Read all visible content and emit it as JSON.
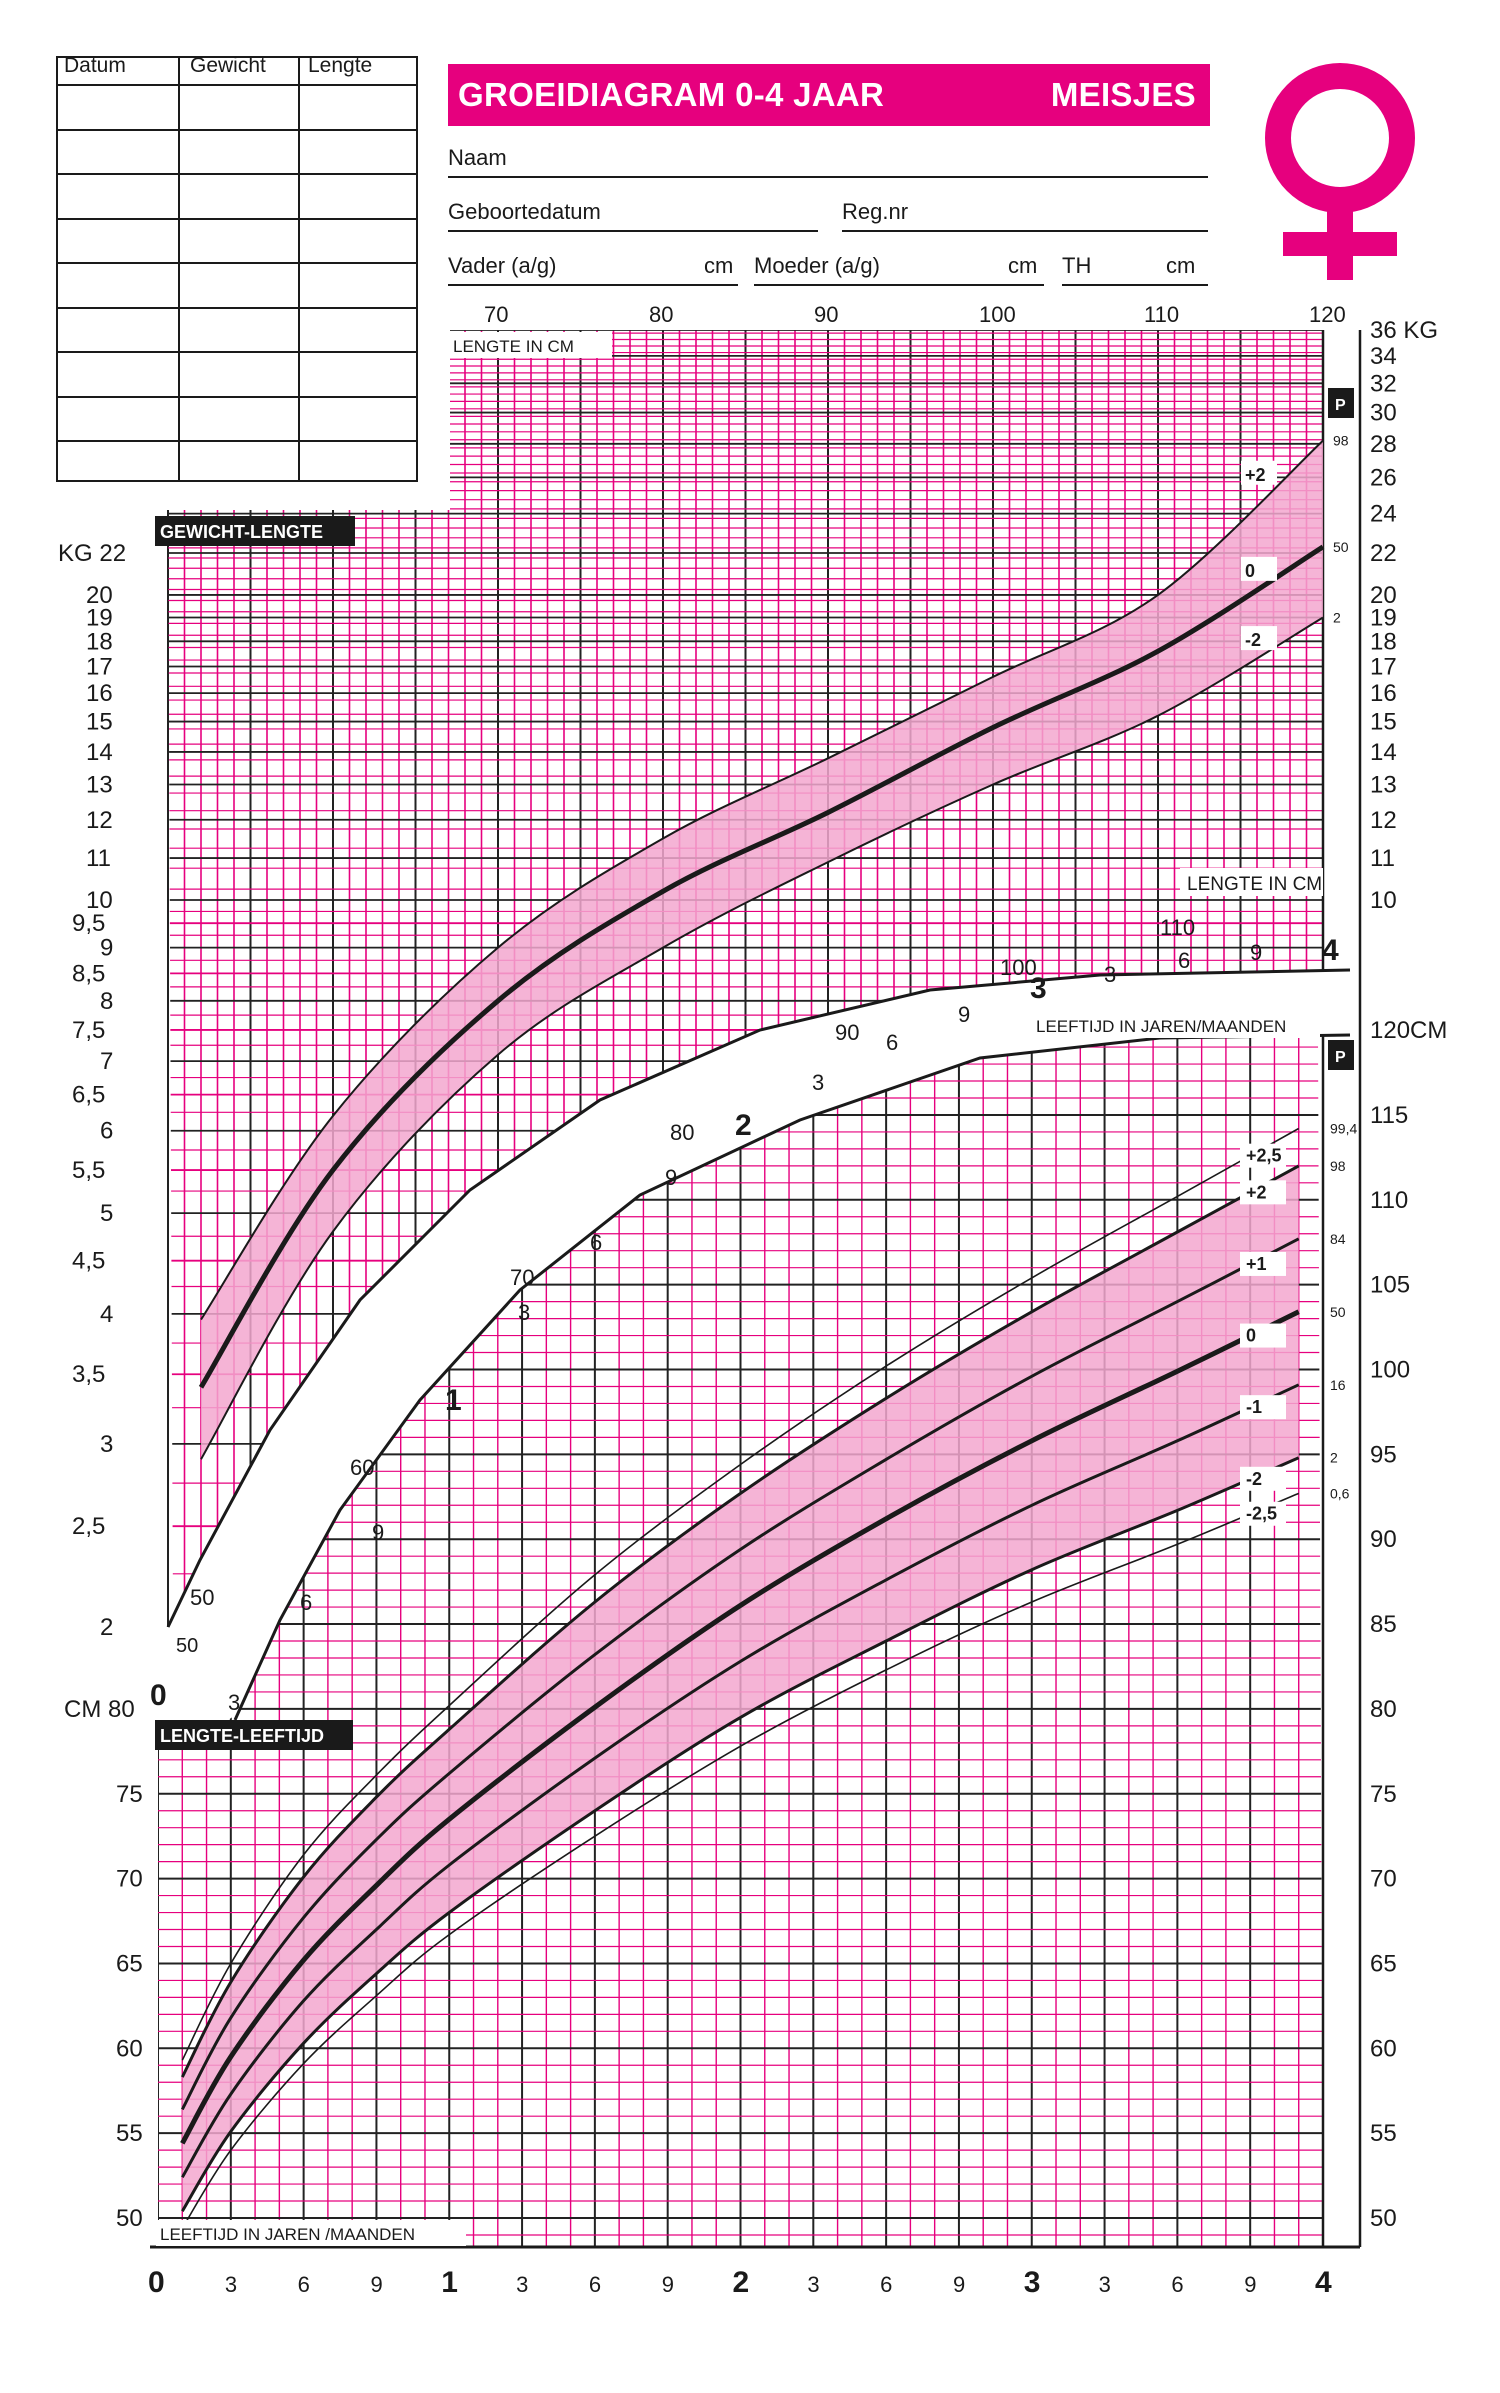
{
  "colors": {
    "accent": "#e6007e",
    "band": "#f3a7cf",
    "ink": "#1a1a1a",
    "grid_dark": "#222222"
  },
  "header": {
    "title": "GROEIDIAGRAM 0-4 JAAR",
    "sex": "MEISJES",
    "fields": {
      "naam": "Naam",
      "geboortedatum": "Geboortedatum",
      "regnr": "Reg.nr",
      "vader": "Vader (a/g)",
      "vader_unit": "cm",
      "moeder": "Moeder (a/g)",
      "moeder_unit": "cm",
      "th": "TH",
      "th_unit": "cm"
    },
    "icon": "venus-symbol-icon"
  },
  "record_table": {
    "headers": [
      "Datum",
      "Gewicht",
      "Lengte"
    ],
    "rows": 9
  },
  "chart_data": [
    {
      "type": "line",
      "title": "GEWICHT-LENGTE",
      "x_axis_title": "LENGTE IN CM",
      "y_unit_left": "KG",
      "y_unit_right": "KG",
      "x_label_corner": "50",
      "x_ticks": [
        "70",
        "80",
        "90",
        "100",
        "110",
        "120"
      ],
      "y_scale": "log",
      "y_ticks_left": [
        "2",
        "2,5",
        "3",
        "3,5",
        "4",
        "4,5",
        "5",
        "5,5",
        "6",
        "6,5",
        "7",
        "7,5",
        "8",
        "8,5",
        "9",
        "9,5",
        "10",
        "11",
        "12",
        "13",
        "14",
        "15",
        "16",
        "17",
        "18",
        "19",
        "20",
        "22"
      ],
      "y_ticks_right": [
        "10",
        "11",
        "12",
        "13",
        "14",
        "15",
        "16",
        "17",
        "18",
        "19",
        "20",
        "22",
        "24",
        "26",
        "28",
        "30",
        "32",
        "34",
        "36"
      ],
      "xlim": [
        50,
        120
      ],
      "ylim": [
        2,
        36
      ],
      "percentile_header": "P",
      "series": [
        {
          "name": "+2",
          "percentile": "98",
          "x": [
            52,
            60,
            70,
            80,
            90,
            100,
            110,
            120
          ],
          "values": [
            3.95,
            6.2,
            9.0,
            11.5,
            13.8,
            16.6,
            20.0,
            28.2
          ]
        },
        {
          "name": "0",
          "percentile": "50",
          "x": [
            52,
            60,
            70,
            80,
            90,
            100,
            110,
            120
          ],
          "values": [
            3.4,
            5.5,
            8.0,
            10.2,
            12.2,
            14.8,
            17.6,
            22.3
          ]
        },
        {
          "name": "-2",
          "percentile": "2",
          "x": [
            52,
            60,
            70,
            80,
            90,
            100,
            110,
            120
          ],
          "values": [
            2.9,
            4.8,
            7.1,
            9.0,
            10.9,
            13.0,
            15.2,
            19.0
          ]
        }
      ],
      "band": [
        "-2",
        "+2"
      ]
    },
    {
      "type": "line",
      "title": "LENGTE-LEEFTIJD",
      "x_axis_title": "LEEFTIJD IN JAREN /MAANDEN",
      "x_axis_title_top": "LEEFTIJD IN JAREN/MAANDEN",
      "y_unit_left": "CM",
      "y_unit_right": "CM",
      "x_ticks": [
        "0",
        "3",
        "6",
        "9",
        "1",
        "3",
        "6",
        "9",
        "2",
        "3",
        "6",
        "9",
        "3",
        "3",
        "6",
        "9",
        "4"
      ],
      "x_tick_months": [
        0,
        3,
        6,
        9,
        12,
        15,
        18,
        21,
        24,
        27,
        30,
        33,
        36,
        39,
        42,
        45,
        48
      ],
      "y_ticks_left": [
        "50",
        "55",
        "60",
        "65",
        "70",
        "75",
        "80"
      ],
      "y_ticks_right": [
        "50",
        "55",
        "60",
        "65",
        "70",
        "75",
        "80",
        "85",
        "90",
        "95",
        "100",
        "105",
        "110",
        "115",
        "120"
      ],
      "xlim": [
        0,
        48
      ],
      "ylim": [
        47,
        120
      ],
      "percentile_header": "P",
      "x_months": [
        1,
        3,
        6,
        9,
        12,
        18,
        24,
        30,
        36,
        42,
        47
      ],
      "series": [
        {
          "name": "+2,5",
          "percentile": "99,4",
          "values": [
            59.3,
            65.0,
            71.4,
            76.1,
            80.2,
            87.9,
            94.4,
            100.2,
            105.4,
            110.2,
            114.2
          ]
        },
        {
          "name": "+2",
          "percentile": "98",
          "values": [
            58.3,
            63.9,
            70.1,
            74.8,
            78.8,
            86.3,
            92.7,
            98.3,
            103.4,
            108.1,
            112.0
          ]
        },
        {
          "name": "+1",
          "percentile": "84",
          "values": [
            56.4,
            61.8,
            67.7,
            72.3,
            76.2,
            83.2,
            89.4,
            94.7,
            99.6,
            104.0,
            107.7
          ]
        },
        {
          "name": "0",
          "percentile": "50",
          "values": [
            54.4,
            59.5,
            65.2,
            69.6,
            73.5,
            80.1,
            86.1,
            91.2,
            95.8,
            99.9,
            103.4
          ]
        },
        {
          "name": "-1",
          "percentile": "16",
          "values": [
            52.4,
            57.3,
            62.8,
            67.0,
            70.8,
            77.1,
            82.8,
            87.6,
            92.0,
            95.8,
            99.1
          ]
        },
        {
          "name": "-2",
          "percentile": "2",
          "values": [
            50.4,
            55.1,
            60.3,
            64.4,
            68.0,
            74.0,
            79.5,
            84.0,
            88.2,
            91.7,
            94.8
          ]
        },
        {
          "name": "-2,5",
          "percentile": "0,6",
          "values": [
            49.4,
            54.0,
            59.1,
            63.1,
            66.7,
            72.5,
            77.8,
            82.3,
            86.3,
            89.7,
            92.7
          ]
        }
      ],
      "band": [
        "-2",
        "+2"
      ]
    }
  ],
  "arc_scale": {
    "lengths": [
      "50",
      "60",
      "70",
      "80",
      "90",
      "100",
      "110"
    ],
    "ages": [
      "0",
      "3",
      "6",
      "9",
      "1",
      "3",
      "6",
      "9",
      "2",
      "3",
      "6",
      "9",
      "3",
      "3",
      "6",
      "9",
      "4"
    ]
  }
}
